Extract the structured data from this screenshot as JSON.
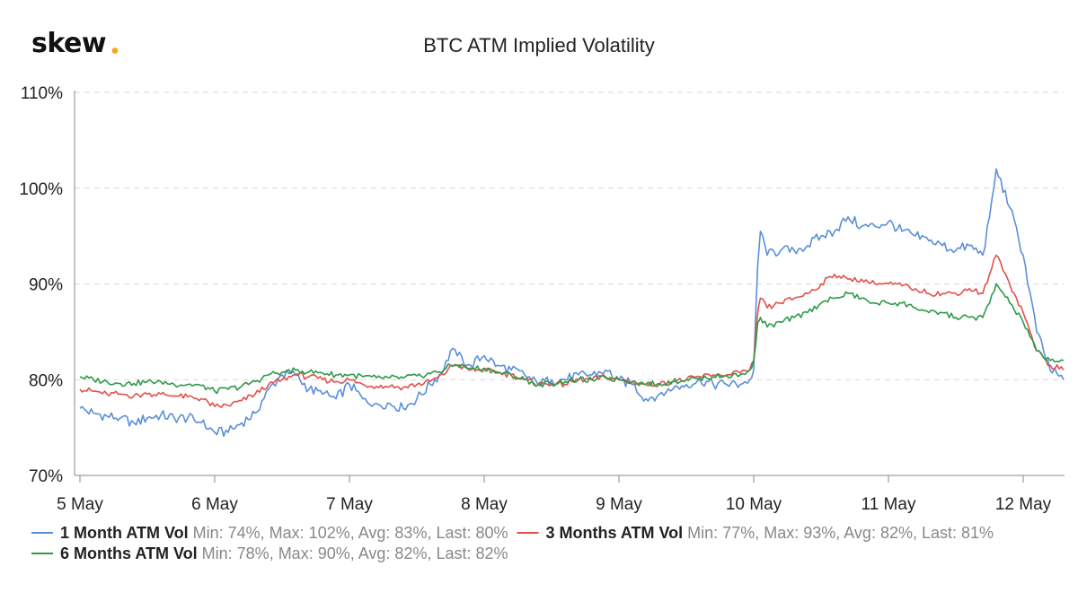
{
  "brand": {
    "logo": "skew",
    "dot_color": "#f5a623"
  },
  "chart_data": {
    "type": "line",
    "title": "BTC ATM Implied Volatility",
    "xlabel": "",
    "ylabel": "",
    "x_range": [
      5.0,
      12.33
    ],
    "ylim": [
      70,
      110
    ],
    "y_ticks": [
      {
        "value": 70,
        "label": "70%"
      },
      {
        "value": 80,
        "label": "80%"
      },
      {
        "value": 90,
        "label": "90%"
      },
      {
        "value": 100,
        "label": "100%"
      },
      {
        "value": 110,
        "label": "110%"
      }
    ],
    "x_ticks": [
      {
        "value": 5,
        "label": "5 May"
      },
      {
        "value": 6,
        "label": "6 May"
      },
      {
        "value": 7,
        "label": "7 May"
      },
      {
        "value": 8,
        "label": "8 May"
      },
      {
        "value": 9,
        "label": "9 May"
      },
      {
        "value": 10,
        "label": "10 May"
      },
      {
        "value": 11,
        "label": "11 May"
      },
      {
        "value": 12,
        "label": "12 May"
      }
    ],
    "grid": "horizontal dashed",
    "legend_position": "bottom",
    "series": [
      {
        "name": "1 Month ATM Vol",
        "stats": "Min: 74%, Max: 102%, Avg: 83%, Last: 80%",
        "color": "#5b8fd9",
        "x": [
          5.0,
          5.1,
          5.2,
          5.3,
          5.4,
          5.5,
          5.6,
          5.7,
          5.8,
          5.9,
          6.0,
          6.1,
          6.2,
          6.3,
          6.4,
          6.5,
          6.6,
          6.7,
          6.8,
          6.9,
          7.0,
          7.1,
          7.2,
          7.3,
          7.4,
          7.5,
          7.6,
          7.7,
          7.75,
          7.8,
          7.9,
          8.0,
          8.1,
          8.2,
          8.3,
          8.4,
          8.5,
          8.6,
          8.7,
          8.8,
          8.9,
          9.0,
          9.1,
          9.2,
          9.3,
          9.4,
          9.5,
          9.6,
          9.7,
          9.8,
          9.9,
          9.97,
          10.0,
          10.03,
          10.05,
          10.1,
          10.2,
          10.3,
          10.4,
          10.5,
          10.6,
          10.7,
          10.8,
          10.9,
          11.0,
          11.1,
          11.2,
          11.3,
          11.4,
          11.5,
          11.6,
          11.7,
          11.75,
          11.8,
          11.9,
          12.0,
          12.1,
          12.2,
          12.3
        ],
        "y": [
          77,
          76.5,
          76.2,
          76,
          75.5,
          76,
          76.3,
          76,
          76,
          75.5,
          74.5,
          74.5,
          75.5,
          76.5,
          79,
          80.5,
          80.5,
          79,
          78.5,
          78,
          79.5,
          78,
          77.5,
          77.5,
          77,
          78,
          79.5,
          81,
          83,
          82.5,
          81.5,
          82.5,
          81.5,
          81,
          80.5,
          79.5,
          80,
          80,
          80.5,
          80.5,
          81,
          80,
          79.5,
          78,
          78.5,
          79,
          79.5,
          80,
          79.5,
          79.5,
          79.5,
          80,
          81,
          92,
          95.5,
          93,
          93.5,
          93.5,
          94,
          95,
          95.5,
          97,
          96,
          96,
          96.5,
          95.5,
          95,
          94.5,
          94,
          93.5,
          94,
          93,
          97,
          102,
          98,
          93,
          85,
          81,
          80
        ]
      },
      {
        "name": "3 Months ATM Vol",
        "stats": "Min: 77%, Max: 93%, Avg: 82%, Last: 81%",
        "color": "#e0514d",
        "x": [
          5.0,
          5.1,
          5.2,
          5.3,
          5.4,
          5.5,
          5.6,
          5.7,
          5.8,
          5.9,
          6.0,
          6.1,
          6.2,
          6.3,
          6.4,
          6.5,
          6.6,
          6.7,
          6.8,
          6.9,
          7.0,
          7.1,
          7.2,
          7.3,
          7.4,
          7.5,
          7.6,
          7.7,
          7.75,
          7.8,
          7.9,
          8.0,
          8.1,
          8.2,
          8.3,
          8.4,
          8.5,
          8.6,
          8.7,
          8.8,
          8.9,
          9.0,
          9.1,
          9.2,
          9.3,
          9.4,
          9.5,
          9.6,
          9.7,
          9.8,
          9.9,
          9.97,
          10.0,
          10.03,
          10.05,
          10.1,
          10.2,
          10.3,
          10.4,
          10.5,
          10.6,
          10.7,
          10.8,
          10.9,
          11.0,
          11.1,
          11.2,
          11.3,
          11.4,
          11.5,
          11.6,
          11.7,
          11.75,
          11.8,
          11.9,
          12.0,
          12.1,
          12.2,
          12.3
        ],
        "y": [
          79,
          78.8,
          78.5,
          78.5,
          78.3,
          78.5,
          78.5,
          78.3,
          78.2,
          78,
          77.2,
          77.3,
          77.8,
          78.5,
          79.5,
          80,
          80.5,
          80.3,
          80,
          79.8,
          80,
          79.5,
          79.3,
          79.3,
          79.2,
          79.5,
          79.8,
          80.5,
          81.5,
          81.5,
          81,
          81,
          80.7,
          80.5,
          80,
          79.5,
          79.5,
          79.5,
          80,
          80,
          80.3,
          80,
          79.8,
          79.5,
          79.5,
          79.8,
          80,
          80.3,
          80.5,
          80.5,
          80.7,
          81,
          82,
          87,
          88.5,
          87.5,
          88,
          88.5,
          89,
          90,
          91,
          90.5,
          90.5,
          90,
          90,
          89.8,
          89.5,
          89,
          89,
          89,
          89.5,
          89,
          91,
          93,
          90,
          87,
          83,
          81.5,
          81
        ]
      },
      {
        "name": "6 Months ATM Vol",
        "stats": "Min: 78%, Max: 90%, Avg: 82%, Last: 82%",
        "color": "#2e9a48",
        "x": [
          5.0,
          5.1,
          5.2,
          5.3,
          5.4,
          5.5,
          5.6,
          5.7,
          5.8,
          5.9,
          6.0,
          6.1,
          6.2,
          6.3,
          6.4,
          6.5,
          6.6,
          6.7,
          6.8,
          6.9,
          7.0,
          7.1,
          7.2,
          7.3,
          7.4,
          7.5,
          7.6,
          7.7,
          7.75,
          7.8,
          7.9,
          8.0,
          8.1,
          8.2,
          8.3,
          8.4,
          8.5,
          8.6,
          8.7,
          8.8,
          8.9,
          9.0,
          9.1,
          9.2,
          9.3,
          9.4,
          9.5,
          9.6,
          9.7,
          9.8,
          9.9,
          9.97,
          10.0,
          10.03,
          10.05,
          10.1,
          10.2,
          10.3,
          10.4,
          10.5,
          10.6,
          10.7,
          10.8,
          10.9,
          11.0,
          11.1,
          11.2,
          11.3,
          11.4,
          11.5,
          11.6,
          11.7,
          11.75,
          11.8,
          11.9,
          12.0,
          12.1,
          12.2,
          12.3
        ],
        "y": [
          80.3,
          80,
          79.8,
          79.6,
          79.6,
          79.8,
          79.8,
          79.5,
          79.5,
          79.4,
          78.8,
          79,
          79.3,
          79.8,
          80.5,
          80.8,
          81,
          80.8,
          80.7,
          80.5,
          80.5,
          80.3,
          80.2,
          80.2,
          80.2,
          80.4,
          80.6,
          81,
          81.5,
          81.5,
          81.2,
          81.2,
          80.8,
          80.5,
          80,
          79.5,
          79.6,
          79.8,
          80,
          80,
          80.2,
          80,
          79.8,
          79.5,
          79.6,
          79.8,
          80,
          80.2,
          80.3,
          80.4,
          80.5,
          81,
          82,
          86,
          86.5,
          85.5,
          86,
          86.5,
          87,
          88,
          88.5,
          89,
          88.5,
          88,
          88,
          88,
          87.5,
          87,
          87,
          86.5,
          86.5,
          86.5,
          88,
          90,
          88,
          86,
          83,
          82,
          82
        ]
      }
    ]
  }
}
